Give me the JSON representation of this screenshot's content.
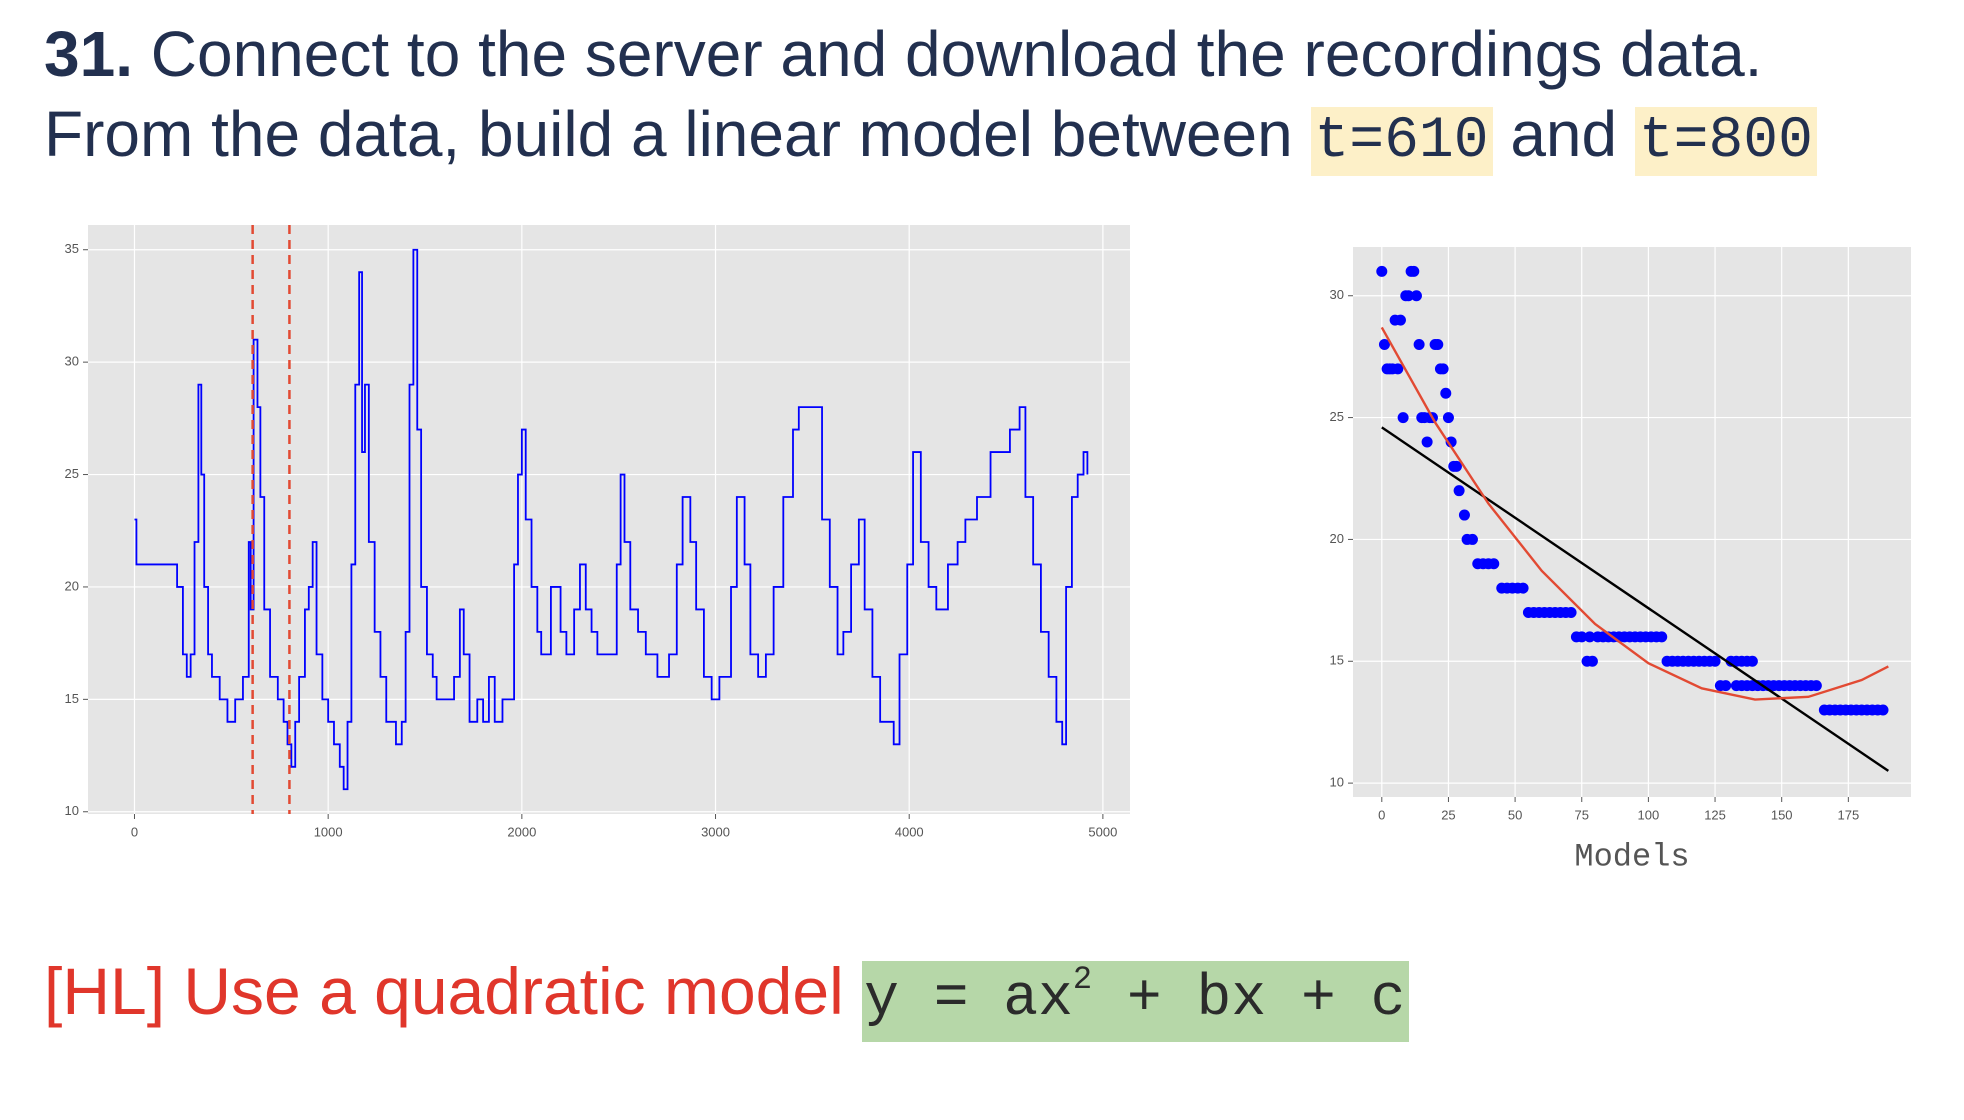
{
  "header": {
    "number": "31.",
    "line1": "Connect to the server and download the recordings data.",
    "line2": "From the data, build a linear model between",
    "code1": "t=610",
    "joiner": "and",
    "code2": "t=800"
  },
  "footer": {
    "text": "[HL] Use a quadratic model",
    "formula": "y = ax",
    "exponent": "2",
    "formula_rest": " + bx + c"
  },
  "chart_data": [
    {
      "type": "line",
      "drawstyle": "steps",
      "grid": true,
      "x": [
        0,
        10,
        210,
        220,
        250,
        270,
        290,
        310,
        330,
        345,
        360,
        380,
        400,
        440,
        480,
        520,
        560,
        590,
        600,
        615,
        635,
        650,
        670,
        700,
        740,
        770,
        790,
        810,
        830,
        850,
        880,
        900,
        920,
        940,
        970,
        1000,
        1030,
        1060,
        1080,
        1100,
        1120,
        1140,
        1160,
        1175,
        1190,
        1210,
        1240,
        1270,
        1300,
        1350,
        1380,
        1400,
        1420,
        1440,
        1460,
        1480,
        1510,
        1540,
        1560,
        1650,
        1680,
        1700,
        1730,
        1770,
        1800,
        1830,
        1860,
        1900,
        1960,
        1980,
        2000,
        2020,
        2050,
        2080,
        2100,
        2150,
        2200,
        2230,
        2270,
        2300,
        2330,
        2360,
        2390,
        2450,
        2490,
        2510,
        2530,
        2560,
        2600,
        2640,
        2700,
        2760,
        2800,
        2830,
        2870,
        2900,
        2940,
        2980,
        3020,
        3080,
        3110,
        3150,
        3180,
        3220,
        3260,
        3300,
        3350,
        3400,
        3430,
        3500,
        3550,
        3590,
        3630,
        3660,
        3700,
        3740,
        3770,
        3810,
        3850,
        3920,
        3950,
        3990,
        4020,
        4060,
        4100,
        4140,
        4200,
        4250,
        4290,
        4350,
        4420,
        4520,
        4570,
        4600,
        4640,
        4680,
        4720,
        4760,
        4790,
        4810,
        4840,
        4870,
        4900,
        4920
      ],
      "series": [
        {
          "color": "#0000ff",
          "values": [
            23,
            21,
            21,
            20,
            17,
            16,
            17,
            22,
            29,
            25,
            20,
            17,
            16,
            15,
            14,
            15,
            16,
            22,
            19,
            31,
            28,
            24,
            19,
            16,
            15,
            14,
            13,
            12,
            14,
            16,
            19,
            20,
            22,
            17,
            15,
            14,
            13,
            12,
            11,
            14,
            21,
            29,
            34,
            26,
            29,
            22,
            18,
            16,
            14,
            13,
            14,
            18,
            29,
            35,
            27,
            20,
            17,
            16,
            15,
            16,
            19,
            17,
            14,
            15,
            14,
            16,
            14,
            15,
            21,
            25,
            27,
            23,
            20,
            18,
            17,
            20,
            18,
            17,
            19,
            21,
            19,
            18,
            17,
            17,
            21,
            25,
            22,
            19,
            18,
            17,
            16,
            17,
            21,
            24,
            22,
            19,
            16,
            15,
            16,
            20,
            24,
            21,
            17,
            16,
            17,
            20,
            24,
            27,
            28,
            28,
            23,
            20,
            17,
            18,
            21,
            23,
            19,
            16,
            14,
            13,
            17,
            21,
            26,
            22,
            20,
            19,
            21,
            22,
            23,
            24,
            26,
            27,
            28,
            24,
            21,
            18,
            16,
            14,
            13,
            20,
            24,
            25,
            26,
            25
          ]
        }
      ],
      "vlines": {
        "values": [
          610,
          800
        ],
        "color": "#e24a33"
      },
      "xlim": [
        -240,
        5140
      ],
      "ylim": [
        9.9,
        36.1
      ],
      "xticks": [
        0,
        1000,
        2000,
        3000,
        4000,
        5000
      ],
      "yticks": [
        10,
        15,
        20,
        25,
        30,
        35
      ]
    },
    {
      "type": "scatter",
      "grid": true,
      "xlabel": "Models",
      "series": [
        {
          "type": "scatter",
          "color": "#0000ff",
          "x": [
            0,
            1,
            2,
            3,
            4,
            5,
            6,
            7,
            8,
            9,
            10,
            11,
            12,
            13,
            14,
            15,
            16,
            17,
            18,
            19,
            20,
            21,
            22,
            23,
            24,
            25,
            26,
            27,
            28,
            29,
            31,
            32,
            34,
            36,
            38,
            40,
            42,
            45,
            47,
            49,
            51,
            53,
            55,
            57,
            59,
            61,
            63,
            65,
            67,
            69,
            71,
            73,
            75,
            77,
            79,
            78,
            81,
            83,
            85,
            87,
            89,
            91,
            93,
            95,
            97,
            99,
            101,
            103,
            105,
            107,
            109,
            111,
            113,
            115,
            117,
            119,
            121,
            123,
            125,
            127,
            129,
            131,
            133,
            135,
            137,
            139,
            133,
            135,
            137,
            139,
            141,
            143,
            145,
            147,
            149,
            151,
            153,
            155,
            157,
            159,
            161,
            163,
            166,
            168,
            170,
            172,
            174,
            176,
            178,
            180,
            182,
            184,
            186,
            188
          ],
          "values": [
            31,
            28,
            27,
            27,
            27,
            29,
            27,
            29,
            25,
            30,
            30,
            31,
            31,
            30,
            28,
            25,
            25,
            24,
            25,
            25,
            28,
            28,
            27,
            27,
            26,
            25,
            24,
            23,
            23,
            22,
            21,
            20,
            20,
            19,
            19,
            19,
            19,
            18,
            18,
            18,
            18,
            18,
            17,
            17,
            17,
            17,
            17,
            17,
            17,
            17,
            17,
            16,
            16,
            15,
            15,
            16,
            16,
            16,
            16,
            16,
            16,
            16,
            16,
            16,
            16,
            16,
            16,
            16,
            16,
            15,
            15,
            15,
            15,
            15,
            15,
            15,
            15,
            15,
            15,
            14,
            14,
            15,
            15,
            15,
            15,
            15,
            14,
            14,
            14,
            14,
            14,
            14,
            14,
            14,
            14,
            14,
            14,
            14,
            14,
            14,
            14,
            14,
            13,
            13,
            13,
            13,
            13,
            13,
            13,
            13,
            13,
            13,
            13,
            13
          ]
        },
        {
          "type": "line",
          "color": "#000000",
          "x": [
            0,
            190
          ],
          "values": [
            24.6,
            10.5
          ]
        },
        {
          "type": "line",
          "color": "#e24a33",
          "x": [
            0,
            20,
            40,
            60,
            80,
            100,
            120,
            140,
            160,
            180,
            190
          ],
          "values": [
            28.7,
            24.8,
            21.47,
            18.71,
            16.53,
            14.92,
            13.89,
            13.43,
            13.54,
            14.23,
            14.79
          ]
        }
      ],
      "xlim": [
        -10.8,
        198.5
      ],
      "ylim": [
        9.43,
        32.0
      ],
      "xticks": [
        0,
        25,
        50,
        75,
        100,
        125,
        150,
        175
      ],
      "yticks": [
        10,
        15,
        20,
        25,
        30
      ]
    }
  ]
}
